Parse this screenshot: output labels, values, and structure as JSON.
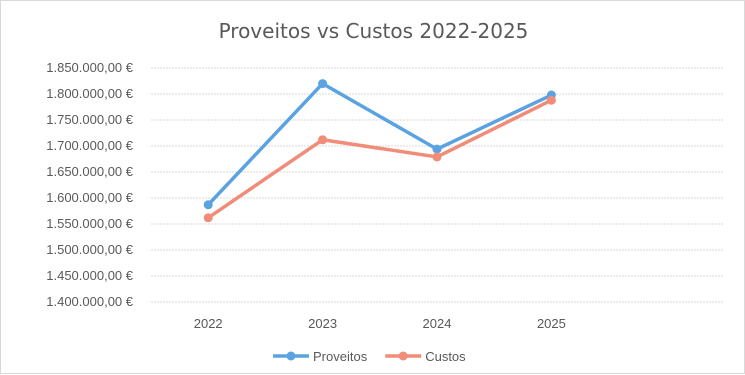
{
  "chart_data": {
    "type": "line",
    "title": "Proveitos vs Custos 2022-2025",
    "xlabel": "",
    "ylabel": "",
    "categories": [
      "2022",
      "2023",
      "2024",
      "2025"
    ],
    "ylim": [
      1400000,
      1850000
    ],
    "ytick_values": [
      1400000,
      1450000,
      1500000,
      1550000,
      1600000,
      1650000,
      1700000,
      1750000,
      1800000,
      1850000
    ],
    "ytick_labels": [
      "1.400.000,00 €",
      "1.450.000,00 €",
      "1.500.000,00 €",
      "1.550.000,00 €",
      "1.600.000,00 €",
      "1.650.000,00 €",
      "1.700.000,00 €",
      "1.750.000,00 €",
      "1.800.000,00 €",
      "1.850.000,00 €"
    ],
    "grid": true,
    "legend_position": "bottom",
    "series": [
      {
        "name": "Proveitos",
        "color": "#5ba3e0",
        "values": [
          1587000,
          1820000,
          1694000,
          1798000
        ]
      },
      {
        "name": "Custos",
        "color": "#f08c78",
        "values": [
          1562000,
          1712000,
          1679000,
          1788000
        ]
      }
    ]
  }
}
